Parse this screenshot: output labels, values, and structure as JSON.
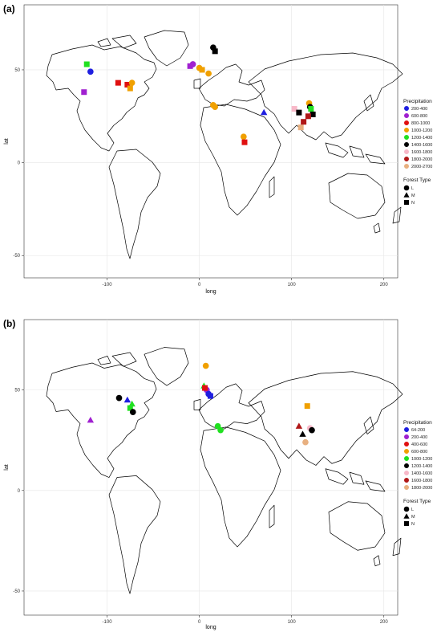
{
  "panels": [
    {
      "label": "(a)",
      "xlabel": "long",
      "ylabel": "lat",
      "x_ticks": [
        -100,
        0,
        100,
        200
      ],
      "y_ticks": [
        -50,
        0,
        50
      ],
      "xlim": [
        -190,
        215
      ],
      "ylim": [
        -62,
        85
      ],
      "legend_precip_title": "Precipitation",
      "legend_forest_title": "Forest Type",
      "precip_classes": [
        {
          "label": "200-400",
          "color": "#1f1fe0"
        },
        {
          "label": "600-800",
          "color": "#a020d0"
        },
        {
          "label": "800-1000",
          "color": "#e01010"
        },
        {
          "label": "1000-1200",
          "color": "#f0a000"
        },
        {
          "label": "1200-1400",
          "color": "#20e020"
        },
        {
          "label": "1400-1600",
          "color": "#000000"
        },
        {
          "label": "1600-1800",
          "color": "#f8b8c8"
        },
        {
          "label": "1800-2000",
          "color": "#b01818"
        },
        {
          "label": "2000-2700",
          "color": "#e8b080"
        }
      ],
      "forest_types": [
        {
          "label": "L",
          "shape": "circle"
        },
        {
          "label": "M",
          "shape": "triangle"
        },
        {
          "label": "N",
          "shape": "square"
        }
      ],
      "points": [
        {
          "lon": -122,
          "lat": 53,
          "class": 4,
          "type": "N"
        },
        {
          "lon": -118,
          "lat": 49,
          "class": 0,
          "type": "L"
        },
        {
          "lon": -125,
          "lat": 38,
          "class": 1,
          "type": "N"
        },
        {
          "lon": -88,
          "lat": 43,
          "class": 2,
          "type": "N"
        },
        {
          "lon": -78,
          "lat": 42,
          "class": 2,
          "type": "N"
        },
        {
          "lon": -75,
          "lat": 40,
          "class": 3,
          "type": "N"
        },
        {
          "lon": -73,
          "lat": 43,
          "class": 3,
          "type": "L"
        },
        {
          "lon": -10,
          "lat": 52,
          "class": 1,
          "type": "N"
        },
        {
          "lon": -7,
          "lat": 53,
          "class": 1,
          "type": "L"
        },
        {
          "lon": 0,
          "lat": 51,
          "class": 3,
          "type": "L"
        },
        {
          "lon": 3,
          "lat": 50,
          "class": 3,
          "type": "N"
        },
        {
          "lon": 10,
          "lat": 48,
          "class": 3,
          "type": "L"
        },
        {
          "lon": 17,
          "lat": 60,
          "class": 5,
          "type": "N"
        },
        {
          "lon": 15,
          "lat": 62,
          "class": 5,
          "type": "L"
        },
        {
          "lon": 15,
          "lat": 31,
          "class": 3,
          "type": "L"
        },
        {
          "lon": 17,
          "lat": 30,
          "class": 3,
          "type": "L"
        },
        {
          "lon": 48,
          "lat": 14,
          "class": 3,
          "type": "L"
        },
        {
          "lon": 49,
          "lat": 11,
          "class": 2,
          "type": "N"
        },
        {
          "lon": 70,
          "lat": 27,
          "class": 0,
          "type": "M"
        },
        {
          "lon": 103,
          "lat": 29,
          "class": 6,
          "type": "N"
        },
        {
          "lon": 108,
          "lat": 27,
          "class": 5,
          "type": "N"
        },
        {
          "lon": 110,
          "lat": 19,
          "class": 8,
          "type": "N"
        },
        {
          "lon": 113,
          "lat": 22,
          "class": 7,
          "type": "N"
        },
        {
          "lon": 119,
          "lat": 32,
          "class": 3,
          "type": "L"
        },
        {
          "lon": 120,
          "lat": 30,
          "class": 5,
          "type": "L"
        },
        {
          "lon": 121,
          "lat": 29,
          "class": 4,
          "type": "N"
        },
        {
          "lon": 123,
          "lat": 26,
          "class": 5,
          "type": "N"
        },
        {
          "lon": 118,
          "lat": 25,
          "class": 7,
          "type": "N"
        }
      ]
    },
    {
      "label": "(b)",
      "xlabel": "long",
      "ylabel": "lat",
      "x_ticks": [
        -100,
        0,
        100,
        200
      ],
      "y_ticks": [
        -50,
        0,
        50
      ],
      "xlim": [
        -190,
        215
      ],
      "ylim": [
        -62,
        85
      ],
      "legend_precip_title": "Precipitation",
      "legend_forest_title": "Forest Type",
      "precip_classes": [
        {
          "label": "64-200",
          "color": "#1f1fe0"
        },
        {
          "label": "200-400",
          "color": "#a020d0"
        },
        {
          "label": "400-600",
          "color": "#e01010"
        },
        {
          "label": "600-800",
          "color": "#f0a000"
        },
        {
          "label": "1000-1200",
          "color": "#20e020"
        },
        {
          "label": "1200-1400",
          "color": "#000000"
        },
        {
          "label": "1400-1600",
          "color": "#f8b8c8"
        },
        {
          "label": "1600-1800",
          "color": "#b01818"
        },
        {
          "label": "1800-2000",
          "color": "#e8b080"
        }
      ],
      "forest_types": [
        {
          "label": "L",
          "shape": "circle"
        },
        {
          "label": "M",
          "shape": "triangle"
        },
        {
          "label": "N",
          "shape": "square"
        }
      ],
      "points": [
        {
          "lon": -87,
          "lat": 46,
          "class": 5,
          "type": "L"
        },
        {
          "lon": -78,
          "lat": 45,
          "class": 0,
          "type": "M"
        },
        {
          "lon": -75,
          "lat": 41,
          "class": 4,
          "type": "N"
        },
        {
          "lon": -73,
          "lat": 43,
          "class": 4,
          "type": "M"
        },
        {
          "lon": -72,
          "lat": 39,
          "class": 5,
          "type": "L"
        },
        {
          "lon": -118,
          "lat": 35,
          "class": 1,
          "type": "M"
        },
        {
          "lon": 5,
          "lat": 52,
          "class": 4,
          "type": "M"
        },
        {
          "lon": 8,
          "lat": 50,
          "class": 1,
          "type": "L"
        },
        {
          "lon": 10,
          "lat": 48,
          "class": 0,
          "type": "L"
        },
        {
          "lon": 12,
          "lat": 47,
          "class": 0,
          "type": "N"
        },
        {
          "lon": 6,
          "lat": 51,
          "class": 2,
          "type": "N"
        },
        {
          "lon": 7,
          "lat": 62,
          "class": 3,
          "type": "L"
        },
        {
          "lon": 20,
          "lat": 32,
          "class": 4,
          "type": "L"
        },
        {
          "lon": 23,
          "lat": 30,
          "class": 4,
          "type": "L"
        },
        {
          "lon": 108,
          "lat": 32,
          "class": 7,
          "type": "M"
        },
        {
          "lon": 112,
          "lat": 28,
          "class": 5,
          "type": "M"
        },
        {
          "lon": 120,
          "lat": 31,
          "class": 6,
          "type": "L"
        },
        {
          "lon": 122,
          "lat": 30,
          "class": 5,
          "type": "L"
        },
        {
          "lon": 115,
          "lat": 24,
          "class": 8,
          "type": "L"
        },
        {
          "lon": 117,
          "lat": 42,
          "class": 3,
          "type": "N"
        }
      ]
    }
  ]
}
